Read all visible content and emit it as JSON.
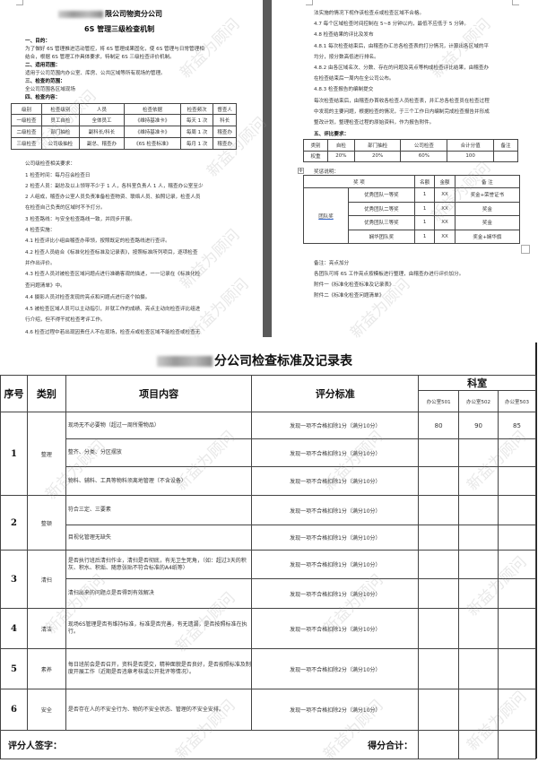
{
  "left_page": {
    "company_suffix": "限公司物资分公司",
    "title": "6S 管理三级检查机制",
    "lines": [
      {
        "text": "一、目的：",
        "bold": true
      },
      {
        "text": "为了做好 6S 管理推进活动管控，将 6S 管理成果固化，使 6S 管理与日常管理相"
      },
      {
        "text": "结合，根据 6S 管理工作具体要求，特制定 6S 三级检查评价机制。"
      },
      {
        "text": "二、适用范围：",
        "bold": true
      },
      {
        "text": "适用于公司范围内办公室、库房、公共区域等所有现场的管理。"
      },
      {
        "text": "三、检查的范围：",
        "bold": true
      },
      {
        "text": "全公司范围各区域现场"
      },
      {
        "text": "四、检查内容：",
        "bold": true
      }
    ],
    "table": {
      "headers": [
        "级别",
        "检查级别",
        "人员",
        "检查依据",
        "检查频次",
        "督查人"
      ],
      "rows": [
        [
          "一级检查",
          "员工自检",
          "全体员工",
          "《维持基准卡》",
          "每天 1 次",
          "科长"
        ],
        [
          "二级检查",
          "部门抽检",
          "副科长/科长",
          "《维持基准卡》",
          "每周 1 次",
          "稽查办"
        ],
        [
          "三级检查",
          "公司级抽检",
          "副总、稽查办",
          "《6S 检查标准》",
          "每月 1 次",
          "稽查办"
        ]
      ]
    },
    "lines2": [
      "公司级检查相关要求：",
      "1 检查时间：每月召会检查日",
      "2 检查人员：副总及以上领导不少于 1 人，各科室负责人 1 人，稽查办公室至少",
      "2 人组成，稽查办公室人员负责准备检查物资、联络人员、拍照记录，检查人员",
      "在检查自己负责的区域时不予打分。",
      "3 检查路线：与安全检查路线一致，并同步开展。",
      "4 检查实施：",
      "4.1 检查评比小组由稽查办带领，按照既定的检查路线进行查评。",
      "4.2 检查人员结合《标准化检查标准及记录表》，按照标准所列项目，逐项检查",
      "并作出评价。",
      "4.3 检查人员对被检查区域问题点进行准确客观的描述，一一记录在《标准化检",
      "查问题清单》中。",
      "4.4 摄影人员对检查发现的亮点和问题点进行逐个拍摄。",
      "4.5 被检查区域人员可以主动指引，并就工作的成绩、亮点主动向检查评比组进",
      "行介绍，但不得干扰检查考评工作。",
      "4.6 检查过程中若出现因责任人不在现场，检查点或检查区域不能检查或检查无"
    ]
  },
  "right_page": {
    "lines": [
      "法实施的情况下视作该检查点或检查区域不合格。",
      "4.7 每个区域检查时间控制在 5~8 分钟以内，最低不应低于 5 分钟。",
      "4.8 检查结果的评比及发布",
      "4.8.1 每次检查结束后，由稽查办汇总各检查表的打分情况，计算出各区域的平",
      "均分，按分数高低进行排名。",
      "4.8.2 由各区域名次、分数、存在的问题及亮点等构成检查评比结果，由稽查办",
      "在检查结束后一周内在全公司公布。",
      "4.8.3 检查报告的编制提交",
      "每次检查结束后，由稽查办首收各检查人员检查表，并汇总各检查员在检查过程",
      "中发现的主要问题，根据检查的情况，于三个工作日内编制完成检查报告并形成",
      "整改计划，整理检查过程的原始资料，作为报告附件。"
    ],
    "eval_heading": "五、评比要求：",
    "eval_table": {
      "headers": [
        "类别",
        "自检",
        "部门抽检",
        "公司检查",
        "合计分值",
        "备注"
      ],
      "row": [
        "权重",
        "20%",
        "20%",
        "60%",
        "100",
        ""
      ]
    },
    "reward_heading": "奖惩说明：",
    "reward_table": {
      "headers": [
        "奖 项",
        "名额",
        "金额",
        "备 注"
      ],
      "group": "团队奖",
      "rows": [
        [
          "优秀团队一等奖",
          "1",
          "XX",
          "奖金+荣誉证书"
        ],
        [
          "优秀团队二等奖",
          "1",
          "XX",
          "奖金"
        ],
        [
          "优秀团队三等奖",
          "1",
          "XX",
          "奖金"
        ],
        [
          "娴华团队奖",
          "1",
          "XX",
          "奖金+娴华旗"
        ]
      ]
    },
    "notes": [
      "备注：亮点加分",
      "各团队可将 6S 工作亮点按模板进行整理，由稽查办进行评价加分。",
      "附件一《标准化检查标准及记录表》",
      "附件二《标准化检查问题清单》"
    ]
  },
  "record_table": {
    "title": "分公司检查标准及记录表",
    "headers": {
      "no": "序号",
      "category": "类别",
      "item": "项目内容",
      "standard": "评分标准",
      "dept": "科室",
      "rooms": [
        "办公室501",
        "办公室502",
        "办公室503"
      ]
    },
    "groups": [
      {
        "no": "1",
        "category": "整理",
        "items": [
          {
            "item": "现场无不必要物（超过一周所需物品）",
            "standard": "发现一项不合格扣除1分（满分10分）",
            "scores": [
              "80",
              "90",
              "85"
            ]
          },
          {
            "item": "整齐、分类、分区摆放",
            "standard": "发现一项不合格扣除1分（满分10分）",
            "scores": [
              "",
              "",
              ""
            ]
          },
          {
            "item": "物料、辅料、工具等物料须离地管理（不含设备）",
            "standard": "发现一项不合格扣除1分（满分10分）",
            "scores": [
              "",
              "",
              ""
            ]
          }
        ]
      },
      {
        "no": "2",
        "category": "整顿",
        "items": [
          {
            "item": "符合三定、三要素",
            "standard": "发现一项不合格扣除1分（满分10分）",
            "scores": [
              "",
              "",
              ""
            ]
          },
          {
            "item": "目视化管理无缺失",
            "standard": "发现一项不合格扣除1分（满分10分）",
            "scores": [
              "",
              "",
              ""
            ]
          }
        ]
      },
      {
        "no": "3",
        "category": "清扫",
        "items": [
          {
            "item": "是否执行班后清扫作业，清扫是否彻底，有无卫生死角，（如：超过3天的积灰、积水、积垢、随意张贴不符合标准的A4纸等）",
            "standard": "发现一项不合格扣除1分（满分10分）",
            "scores": [
              "",
              "",
              ""
            ]
          },
          {
            "item": "清扫出来的问题点是否得到有效解决",
            "standard": "发现一项不合格扣除1分（满分10分）",
            "scores": [
              "",
              "",
              ""
            ]
          }
        ]
      },
      {
        "no": "4",
        "category": "清洁",
        "items": [
          {
            "item": "现场6S管理是否有维持标准，标准是否完善，有无遗漏，是否按照标准在执行。",
            "standard": "发现一项不合格扣除1分（满分10分）",
            "scores": [
              "",
              "",
              ""
            ]
          }
        ]
      },
      {
        "no": "5",
        "category": "素养",
        "items": [
          {
            "item": "每日班前会是否召开，资料是否提交，精神面貌是否良好，是否按照标准及制度开展工作（近期是否违章考核或公开批评等情况）。",
            "standard": "发现一项不合格扣除2分（满分10分）",
            "scores": [
              "",
              "",
              ""
            ]
          }
        ]
      },
      {
        "no": "6",
        "category": "安全",
        "items": [
          {
            "item": "是否存在人的不安全行为、物的不安全状态、管理的不安全安排。",
            "standard": "发现一项不合格扣除2分（满分10分）",
            "scores": [
              "",
              "",
              ""
            ]
          }
        ]
      }
    ],
    "signature_label": "评分人签字：",
    "total_label": "得分合计：",
    "total_scores": [
      "",
      "",
      ""
    ]
  },
  "watermark": "新益为顾问"
}
